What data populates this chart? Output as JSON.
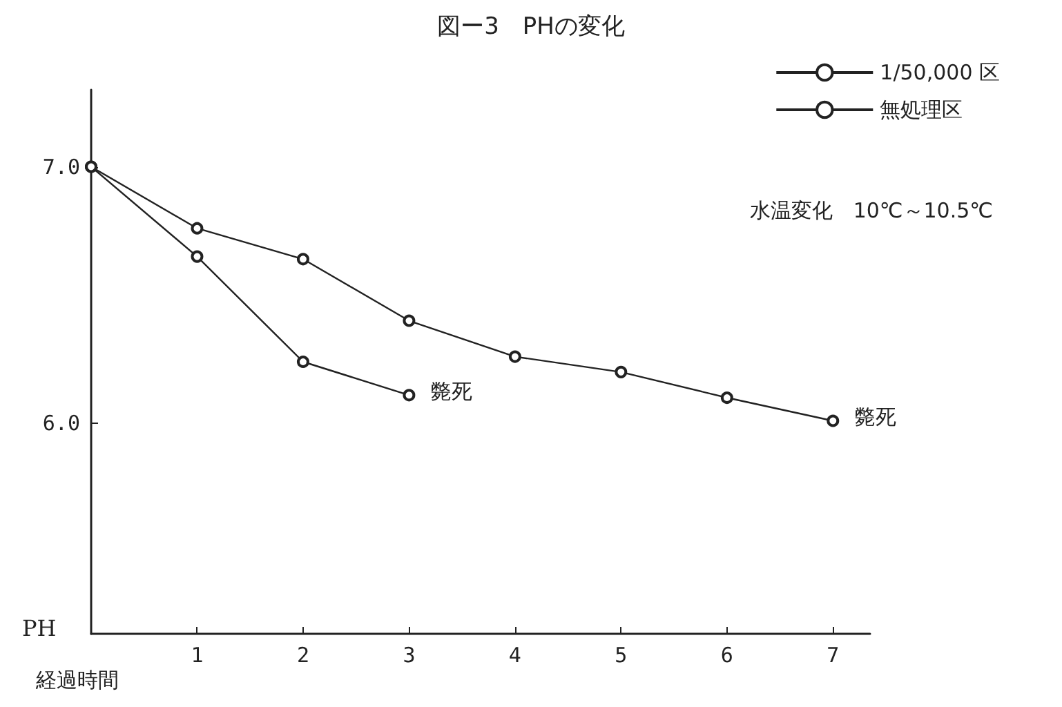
{
  "chart_data": {
    "type": "line",
    "title": "図ー3　PHの変化",
    "xlabel": "経過時間",
    "ylabel": "PH",
    "x": [
      0,
      1,
      2,
      3,
      4,
      5,
      6,
      7
    ],
    "series": [
      {
        "name": "1/50,000 区",
        "color": "#222222",
        "values": [
          7.0,
          6.76,
          6.64,
          6.4,
          6.26,
          6.2,
          6.1,
          6.01
        ]
      },
      {
        "name": "無処理区",
        "color": "#222222",
        "values": [
          7.0,
          6.65,
          6.24,
          6.11,
          null,
          null,
          null,
          null
        ]
      }
    ],
    "xlim": [
      0,
      7.35
    ],
    "ylim": [
      5.18,
      7.3
    ],
    "xticks": [
      1,
      2,
      3,
      4,
      5,
      6,
      7
    ],
    "yticks": [
      {
        "value": 6,
        "label": "6.0"
      },
      {
        "value": 7,
        "label": "7.0"
      }
    ],
    "grid": false,
    "legend": "top right",
    "marker": "circle",
    "line_style": "solid",
    "annotations": [
      "水温変化　10℃～10.5℃",
      {
        "text": "斃死",
        "x": 3,
        "y": 6.11
      },
      {
        "text": "斃死",
        "x": 7,
        "y": 6.01
      }
    ]
  }
}
